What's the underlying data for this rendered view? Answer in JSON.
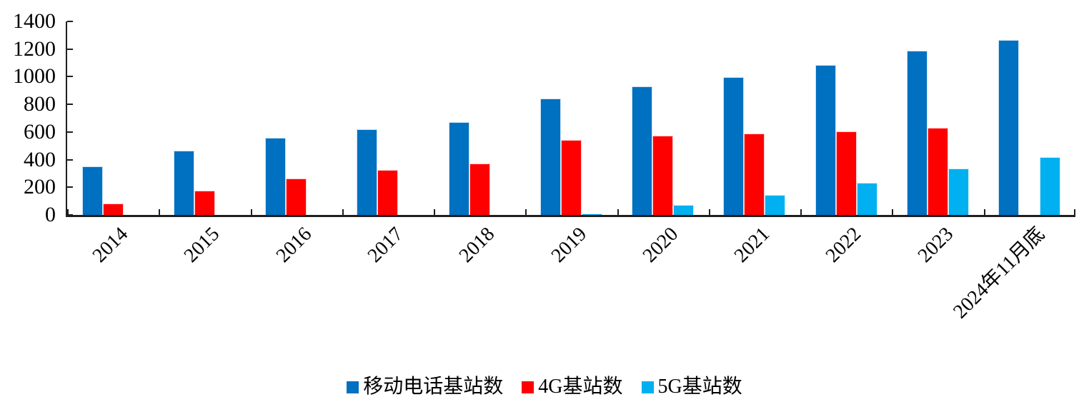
{
  "chart_data": {
    "type": "bar",
    "title": "",
    "categories": [
      "2014",
      "2015",
      "2016",
      "2017",
      "2018",
      "2019",
      "2020",
      "2021",
      "2022",
      "2023",
      "2024年11月底"
    ],
    "series": [
      {
        "name": "移动电话基站数",
        "color": "#0070C0",
        "values": [
          350,
          466,
          559,
          619,
          671,
          841,
          931,
          996,
          1083,
          1188,
          1265
        ]
      },
      {
        "name": "4G基站数",
        "color": "#FF0000",
        "values": [
          85,
          177,
          263,
          328,
          372,
          544,
          575,
          590,
          604,
          629,
          null
        ]
      },
      {
        "name": "5G基站数",
        "color": "#00B0F0",
        "values": [
          null,
          null,
          null,
          null,
          null,
          13,
          72,
          143,
          231,
          338,
          419
        ]
      }
    ],
    "xlabel": "",
    "ylabel": "",
    "ylim": [
      0,
      1400
    ],
    "yticks": [
      0,
      200,
      400,
      600,
      800,
      1000,
      1200,
      1400
    ],
    "grid": false,
    "legend_position": "bottom",
    "axis_color": "#1f1f1f",
    "background_color": "#ffffff"
  }
}
